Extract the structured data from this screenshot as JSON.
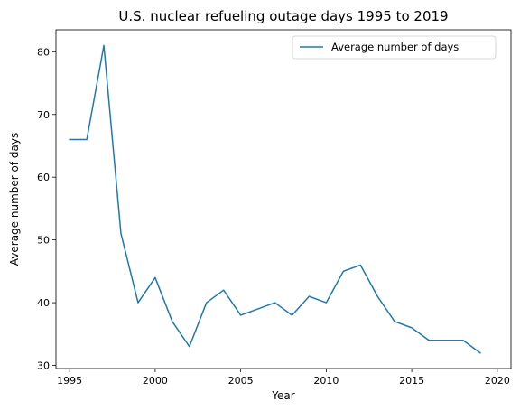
{
  "chart_data": {
    "type": "line",
    "title": "U.S. nuclear refueling outage days 1995 to 2019",
    "xlabel": "Year",
    "ylabel": "Average number of days",
    "xlim": [
      1994.2,
      2020.8
    ],
    "ylim": [
      29.5,
      83.5
    ],
    "xticks": [
      1995,
      2000,
      2005,
      2010,
      2015,
      2020
    ],
    "yticks": [
      30,
      40,
      50,
      60,
      70,
      80
    ],
    "grid": false,
    "legend_position": "top-right",
    "series": [
      {
        "name": "Average number of days",
        "color": "#1f77b4",
        "x": [
          1995,
          1996,
          1997,
          1998,
          1999,
          2000,
          2001,
          2002,
          2003,
          2004,
          2005,
          2006,
          2007,
          2008,
          2009,
          2010,
          2011,
          2012,
          2013,
          2014,
          2015,
          2016,
          2017,
          2018,
          2019
        ],
        "y": [
          66,
          66,
          81,
          51,
          40,
          44,
          37,
          33,
          40,
          42,
          38,
          39,
          40,
          38,
          41,
          40,
          45,
          46,
          41,
          37,
          36,
          34,
          34,
          34,
          32
        ]
      }
    ]
  }
}
